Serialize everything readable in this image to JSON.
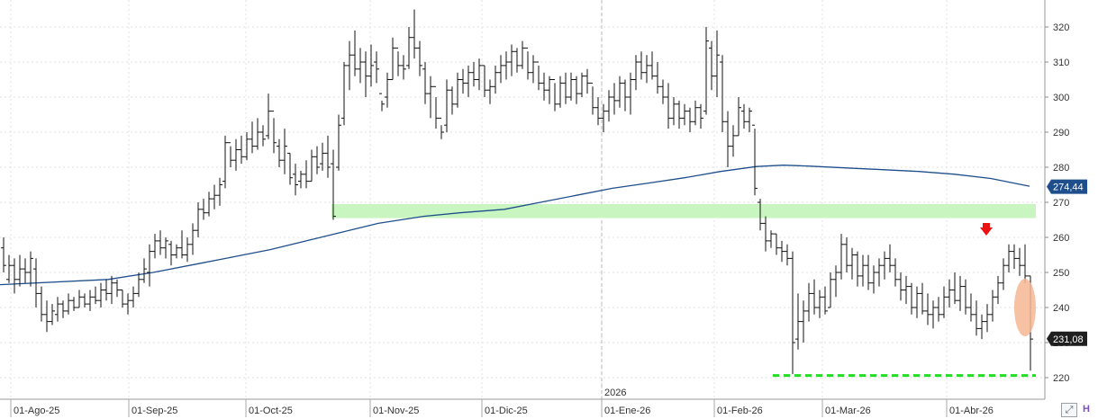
{
  "chart_data": {
    "type": "ohlc",
    "price_axis": {
      "ticks": [
        220,
        230,
        240,
        250,
        260,
        270,
        280,
        290,
        300,
        310,
        320
      ],
      "ylim": [
        216.5,
        330
      ]
    },
    "date_axis": {
      "labels": [
        "01-Ago-25",
        "01-Sep-25",
        "01-Oct-25",
        "01-Nov-25",
        "01-Dic-25",
        "01-Ene-26",
        "01-Feb-26",
        "01-Mar-26",
        "01-Abr-26"
      ],
      "year_marker": "2026"
    },
    "last_price_label": "231,08",
    "moving_average_label": "274,44",
    "colors": {
      "bars": "#111111",
      "moving_average": "#1f4e8c",
      "resistance_zone": "#c9f5c0",
      "support_line": "#22dd22",
      "arrow": "#ee1111",
      "ellipse": "#f6b794",
      "price_label_bg": "#1f1f1f",
      "ma_label_bg": "#1f4e8c",
      "grid": "#e2e2e2"
    },
    "annotations": {
      "resistance_zone": {
        "from": 265.5,
        "to": 269.5
      },
      "support_level": 220.6,
      "arrow": "down",
      "ellipse": "price drop"
    },
    "moving_average": [
      [
        0,
        246.5
      ],
      [
        120,
        248
      ],
      [
        170,
        250
      ],
      [
        220,
        252.5
      ],
      [
        260,
        254.5
      ],
      [
        300,
        256.5
      ],
      [
        340,
        259
      ],
      [
        380,
        261.5
      ],
      [
        420,
        264
      ],
      [
        470,
        266
      ],
      [
        510,
        267
      ],
      [
        560,
        268
      ],
      [
        600,
        270
      ],
      [
        640,
        272
      ],
      [
        680,
        274
      ],
      [
        720,
        275.5
      ],
      [
        760,
        277
      ],
      [
        800,
        278.8
      ],
      [
        840,
        280.2
      ],
      [
        870,
        280.6
      ],
      [
        900,
        280.3
      ],
      [
        940,
        279.8
      ],
      [
        980,
        279.3
      ],
      [
        1020,
        278.8
      ],
      [
        1060,
        278
      ],
      [
        1100,
        276.8
      ],
      [
        1143,
        274.6
      ]
    ],
    "bars": [
      [
        4,
        260,
        250,
        257,
        252
      ],
      [
        10,
        255,
        247,
        248,
        252
      ],
      [
        16,
        254,
        244,
        252,
        248
      ],
      [
        22,
        255,
        246,
        248,
        251
      ],
      [
        28,
        254,
        247,
        251,
        250
      ],
      [
        34,
        256,
        246,
        250,
        254
      ],
      [
        40,
        254,
        240,
        251,
        244
      ],
      [
        46,
        246,
        236,
        244,
        238
      ],
      [
        52,
        242,
        233,
        238,
        236
      ],
      [
        58,
        241,
        235,
        236,
        239
      ],
      [
        64,
        243,
        236,
        238,
        241
      ],
      [
        70,
        242,
        237,
        241,
        239
      ],
      [
        76,
        244,
        238,
        239,
        242
      ],
      [
        82,
        243,
        239,
        242,
        240
      ],
      [
        88,
        245,
        240,
        240,
        243
      ],
      [
        94,
        244,
        240,
        243,
        241
      ],
      [
        100,
        245,
        239,
        241,
        243
      ],
      [
        106,
        246,
        241,
        243,
        242
      ],
      [
        112,
        247,
        240,
        242,
        245
      ],
      [
        118,
        248,
        242,
        245,
        244
      ],
      [
        124,
        249,
        241,
        244,
        247
      ],
      [
        130,
        248,
        243,
        247,
        245
      ],
      [
        136,
        245,
        240,
        245,
        241
      ],
      [
        142,
        244,
        238,
        241,
        242
      ],
      [
        148,
        246,
        240,
        242,
        244
      ],
      [
        154,
        250,
        243,
        244,
        248
      ],
      [
        160,
        254,
        247,
        248,
        251
      ],
      [
        166,
        258,
        246,
        250,
        256
      ],
      [
        172,
        261,
        254,
        256,
        259
      ],
      [
        178,
        262,
        255,
        259,
        257
      ],
      [
        184,
        260,
        254,
        257,
        259
      ],
      [
        190,
        259,
        252,
        258,
        255
      ],
      [
        196,
        258,
        254,
        255,
        257
      ],
      [
        202,
        262,
        254,
        257,
        255
      ],
      [
        208,
        260,
        253,
        255,
        258
      ],
      [
        214,
        264,
        255,
        258,
        262
      ],
      [
        220,
        270,
        260,
        262,
        268
      ],
      [
        226,
        271,
        265,
        268,
        267
      ],
      [
        232,
        273,
        266,
        267,
        271
      ],
      [
        238,
        275,
        268,
        271,
        272
      ],
      [
        244,
        277,
        269,
        272,
        275
      ],
      [
        250,
        289,
        274,
        276,
        287
      ],
      [
        256,
        286,
        280,
        287,
        282
      ],
      [
        262,
        288,
        279,
        282,
        285
      ],
      [
        268,
        289,
        281,
        285,
        283
      ],
      [
        274,
        290,
        282,
        283,
        288
      ],
      [
        280,
        293,
        284,
        288,
        286
      ],
      [
        286,
        294,
        285,
        286,
        290
      ],
      [
        292,
        292,
        286,
        290,
        288
      ],
      [
        298,
        301,
        288,
        289,
        296
      ],
      [
        304,
        294,
        284,
        296,
        287
      ],
      [
        310,
        288,
        280,
        286,
        282
      ],
      [
        316,
        291,
        278,
        282,
        286
      ],
      [
        322,
        284,
        275,
        284,
        277
      ],
      [
        328,
        281,
        272,
        278,
        275
      ],
      [
        334,
        279,
        274,
        276,
        278
      ],
      [
        340,
        282,
        274,
        278,
        276
      ],
      [
        346,
        285,
        276,
        276,
        283
      ],
      [
        352,
        286,
        278,
        283,
        280
      ],
      [
        358,
        287,
        279,
        281,
        284
      ],
      [
        364,
        289,
        277,
        284,
        280
      ],
      [
        370,
        285,
        265,
        281,
        266
      ],
      [
        376,
        295,
        279,
        280,
        292
      ],
      [
        382,
        310,
        292,
        294,
        309
      ],
      [
        388,
        316,
        302,
        309,
        312
      ],
      [
        394,
        319,
        306,
        312,
        308
      ],
      [
        400,
        314,
        304,
        308,
        310
      ],
      [
        406,
        313,
        300,
        310,
        306
      ],
      [
        412,
        315,
        303,
        306,
        309
      ],
      [
        418,
        313,
        304,
        310,
        308
      ],
      [
        424,
        299,
        296,
        301,
        298
      ],
      [
        430,
        307,
        297,
        300,
        305
      ],
      [
        436,
        317,
        305,
        305,
        314
      ],
      [
        442,
        313,
        306,
        314,
        309
      ],
      [
        448,
        312,
        305,
        309,
        308
      ],
      [
        454,
        320,
        308,
        309,
        317
      ],
      [
        460,
        325,
        311,
        317,
        314
      ],
      [
        466,
        316,
        306,
        314,
        309
      ],
      [
        472,
        310,
        298,
        308,
        301
      ],
      [
        478,
        306,
        294,
        301,
        303
      ],
      [
        484,
        300,
        291,
        303,
        294
      ],
      [
        490,
        292,
        288,
        294,
        290
      ],
      [
        496,
        305,
        290,
        292,
        302
      ],
      [
        502,
        303,
        295,
        302,
        298
      ],
      [
        508,
        307,
        297,
        298,
        305
      ],
      [
        514,
        308,
        301,
        305,
        304
      ],
      [
        520,
        309,
        300,
        304,
        307
      ],
      [
        526,
        310,
        303,
        307,
        305
      ],
      [
        532,
        311,
        302,
        305,
        309
      ],
      [
        538,
        309,
        300,
        309,
        302
      ],
      [
        544,
        305,
        298,
        302,
        303
      ],
      [
        550,
        309,
        301,
        303,
        307
      ],
      [
        556,
        312,
        304,
        307,
        309
      ],
      [
        562,
        313,
        305,
        309,
        310
      ],
      [
        568,
        315,
        306,
        310,
        313
      ],
      [
        574,
        314,
        307,
        313,
        309
      ],
      [
        580,
        316,
        308,
        309,
        314
      ],
      [
        586,
        313,
        305,
        314,
        307
      ],
      [
        592,
        312,
        304,
        307,
        310
      ],
      [
        598,
        309,
        302,
        310,
        304
      ],
      [
        604,
        307,
        299,
        304,
        302
      ],
      [
        610,
        306,
        298,
        302,
        305
      ],
      [
        616,
        304,
        296,
        305,
        298
      ],
      [
        622,
        306,
        297,
        298,
        304
      ],
      [
        628,
        307,
        298,
        304,
        300
      ],
      [
        634,
        307,
        299,
        300,
        305
      ],
      [
        640,
        306,
        298,
        305,
        301
      ],
      [
        646,
        307,
        300,
        301,
        306
      ],
      [
        652,
        308,
        301,
        306,
        304
      ],
      [
        658,
        303,
        295,
        304,
        297
      ],
      [
        664,
        300,
        292,
        297,
        294
      ],
      [
        670,
        298,
        290,
        294,
        296
      ],
      [
        676,
        302,
        293,
        296,
        300
      ],
      [
        682,
        304,
        295,
        300,
        299
      ],
      [
        688,
        306,
        297,
        299,
        304
      ],
      [
        694,
        305,
        296,
        304,
        300
      ],
      [
        700,
        307,
        295,
        300,
        305
      ],
      [
        706,
        312,
        302,
        305,
        310
      ],
      [
        712,
        313,
        305,
        310,
        307
      ],
      [
        718,
        312,
        304,
        307,
        309
      ],
      [
        724,
        313,
        305,
        309,
        306
      ],
      [
        730,
        310,
        301,
        306,
        303
      ],
      [
        736,
        305,
        298,
        303,
        300
      ],
      [
        742,
        304,
        291,
        300,
        294
      ],
      [
        748,
        300,
        292,
        294,
        298
      ],
      [
        754,
        299,
        291,
        298,
        294
      ],
      [
        760,
        298,
        292,
        294,
        296
      ],
      [
        766,
        297,
        290,
        296,
        293
      ],
      [
        772,
        299,
        292,
        293,
        297
      ],
      [
        778,
        298,
        291,
        297,
        294
      ],
      [
        784,
        320,
        295,
        296,
        316
      ],
      [
        790,
        316,
        302,
        314,
        306
      ],
      [
        796,
        319,
        300,
        306,
        312
      ],
      [
        802,
        312,
        290,
        310,
        293
      ],
      [
        808,
        296,
        280,
        293,
        286
      ],
      [
        814,
        292,
        283,
        286,
        289
      ],
      [
        820,
        300,
        289,
        289,
        297
      ],
      [
        826,
        298,
        291,
        296,
        293
      ],
      [
        832,
        297,
        290,
        293,
        296
      ],
      [
        838,
        291,
        272,
        292,
        274
      ],
      [
        844,
        271,
        262,
        270,
        264
      ],
      [
        850,
        266,
        256,
        264,
        259
      ],
      [
        856,
        262,
        257,
        259,
        261
      ],
      [
        862,
        261,
        255,
        261,
        257
      ],
      [
        868,
        259,
        253,
        257,
        256
      ],
      [
        874,
        258,
        252,
        256,
        254
      ],
      [
        880,
        256,
        221,
        254,
        230
      ],
      [
        886,
        244,
        228,
        231,
        236
      ],
      [
        892,
        242,
        230,
        236,
        239
      ],
      [
        898,
        247,
        236,
        239,
        244
      ],
      [
        904,
        248,
        238,
        244,
        240
      ],
      [
        910,
        245,
        237,
        240,
        243
      ],
      [
        916,
        246,
        238,
        243,
        239
      ],
      [
        922,
        250,
        240,
        240,
        248
      ],
      [
        928,
        252,
        243,
        248,
        250
      ],
      [
        934,
        261,
        248,
        250,
        258
      ],
      [
        940,
        260,
        250,
        258,
        252
      ],
      [
        946,
        257,
        248,
        252,
        255
      ],
      [
        952,
        256,
        246,
        255,
        249
      ],
      [
        958,
        255,
        246,
        249,
        252
      ],
      [
        964,
        255,
        245,
        252,
        247
      ],
      [
        970,
        252,
        244,
        247,
        250
      ],
      [
        976,
        254,
        246,
        250,
        252
      ],
      [
        982,
        256,
        248,
        252,
        254
      ],
      [
        988,
        258,
        250,
        254,
        252
      ],
      [
        994,
        254,
        246,
        252,
        248
      ],
      [
        1000,
        250,
        242,
        248,
        245
      ],
      [
        1006,
        249,
        241,
        245,
        246
      ],
      [
        1012,
        247,
        238,
        246,
        240
      ],
      [
        1018,
        246,
        237,
        240,
        244
      ],
      [
        1024,
        247,
        238,
        244,
        239
      ],
      [
        1030,
        244,
        235,
        239,
        238
      ],
      [
        1036,
        242,
        234,
        238,
        240
      ],
      [
        1042,
        243,
        236,
        240,
        238
      ],
      [
        1048,
        246,
        237,
        238,
        243
      ],
      [
        1054,
        248,
        240,
        243,
        245
      ],
      [
        1060,
        250,
        241,
        245,
        242
      ],
      [
        1066,
        249,
        239,
        242,
        246
      ],
      [
        1072,
        248,
        238,
        246,
        240
      ],
      [
        1078,
        244,
        236,
        240,
        238
      ],
      [
        1084,
        242,
        232,
        238,
        234
      ],
      [
        1090,
        238,
        231,
        234,
        236
      ],
      [
        1096,
        241,
        233,
        236,
        238
      ],
      [
        1102,
        245,
        236,
        238,
        243
      ],
      [
        1108,
        249,
        241,
        243,
        247
      ],
      [
        1114,
        254,
        245,
        247,
        252
      ],
      [
        1120,
        258,
        250,
        252,
        256
      ],
      [
        1126,
        258,
        251,
        256,
        254
      ],
      [
        1132,
        257,
        249,
        254,
        252
      ],
      [
        1138,
        258,
        247,
        252,
        249
      ],
      [
        1144,
        249,
        222,
        249,
        231
      ]
    ]
  }
}
